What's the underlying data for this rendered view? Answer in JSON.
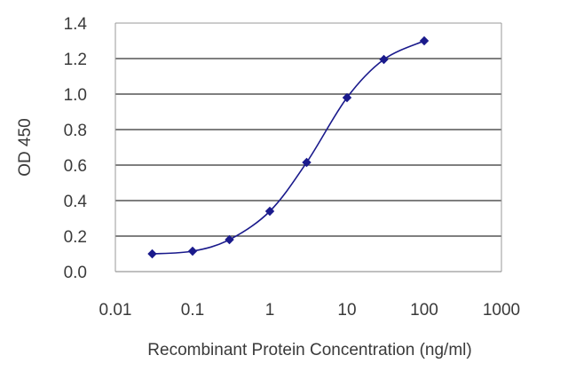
{
  "chart_data": {
    "type": "line",
    "xscale": "log",
    "xlabel": "Recombinant Protein Concentration (ng/ml)",
    "ylabel": "OD 450",
    "xlim": [
      0.01,
      1000
    ],
    "ylim": [
      0,
      1.4
    ],
    "x_ticks": [
      "0.01",
      "0.1",
      "1",
      "10",
      "100",
      "1000"
    ],
    "y_ticks": [
      "0.0",
      "0.2",
      "0.4",
      "0.6",
      "0.8",
      "1.0",
      "1.2",
      "1.4"
    ],
    "grid": "horizontal",
    "series": [
      {
        "x": [
          0.03,
          0.1,
          0.3,
          1,
          3,
          10,
          30,
          100
        ],
        "y": [
          0.1,
          0.115,
          0.18,
          0.34,
          0.615,
          0.98,
          1.195,
          1.3
        ]
      }
    ],
    "colors": {
      "series": "#1a1a8c",
      "grid": "#333333",
      "frame": "#9a9a9a"
    }
  }
}
